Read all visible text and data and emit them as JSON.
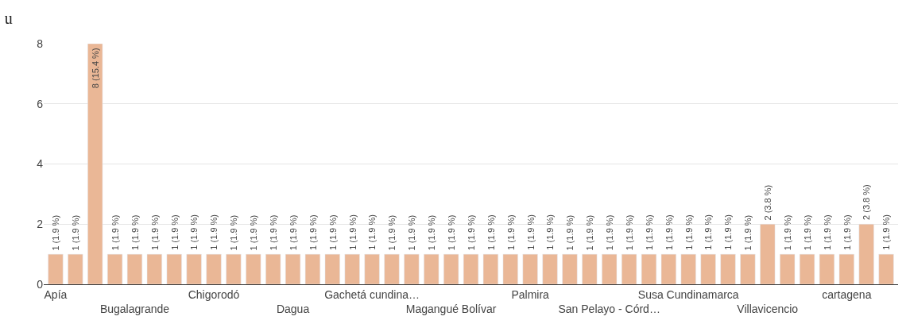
{
  "chart_data": {
    "type": "bar",
    "title": "u",
    "categories": [
      "Apía",
      null,
      null,
      null,
      "Bugalagrande",
      null,
      null,
      null,
      "Chigorodó",
      null,
      null,
      null,
      "Dagua",
      null,
      null,
      null,
      "Gachetá cundina…",
      null,
      null,
      null,
      "Magangué Bolívar",
      null,
      null,
      null,
      "Palmira",
      null,
      null,
      null,
      "San Pelayo - Córd…",
      null,
      null,
      null,
      "Susa Cundinamarca",
      null,
      null,
      null,
      "Villavicencio",
      null,
      null,
      null,
      "cartagena",
      null,
      null
    ],
    "values": [
      1,
      1,
      8,
      1,
      1,
      1,
      1,
      1,
      1,
      1,
      1,
      1,
      1,
      1,
      1,
      1,
      1,
      1,
      1,
      1,
      1,
      1,
      1,
      1,
      1,
      1,
      1,
      1,
      1,
      1,
      1,
      1,
      1,
      1,
      1,
      1,
      2,
      1,
      1,
      1,
      1,
      2,
      1
    ],
    "value_labels": [
      "1 (1.9 %)",
      "1 (1.9 %)",
      "8 (15.4 %)",
      "1 (1.9 %)",
      "1 (1.9 %)",
      "1 (1.9 %)",
      "1 (1.9 %)",
      "1 (1.9 %)",
      "1 (1.9 %)",
      "1 (1.9 %)",
      "1 (1.9 %)",
      "1 (1.9 %)",
      "1 (1.9 %)",
      "1 (1.9 %)",
      "1 (1.9 %)",
      "1 (1.9 %)",
      "1 (1.9 %)",
      "1 (1.9 %)",
      "1 (1.9 %)",
      "1 (1.9 %)",
      "1 (1.9 %)",
      "1 (1.9 %)",
      "1 (1.9 %)",
      "1 (1.9 %)",
      "1 (1.9 %)",
      "1 (1.9 %)",
      "1 (1.9 %)",
      "1 (1.9 %)",
      "1 (1.9 %)",
      "1 (1.9 %)",
      "1 (1.9 %)",
      "1 (1.9 %)",
      "1 (1.9 %)",
      "1 (1.9 %)",
      "1 (1.9 %)",
      "1 (1.9 %)",
      "2 (3.8 %)",
      "1 (1.9 %)",
      "1 (1.9 %)",
      "1 (1.9 %)",
      "1 (1.9 %)",
      "2 (3.8 %)",
      "1 (1.9 %)"
    ],
    "color": "#eab796",
    "ylim": [
      0,
      8
    ],
    "yticks": [
      0,
      2,
      4,
      6,
      8
    ],
    "grid": "y",
    "legend": false
  }
}
